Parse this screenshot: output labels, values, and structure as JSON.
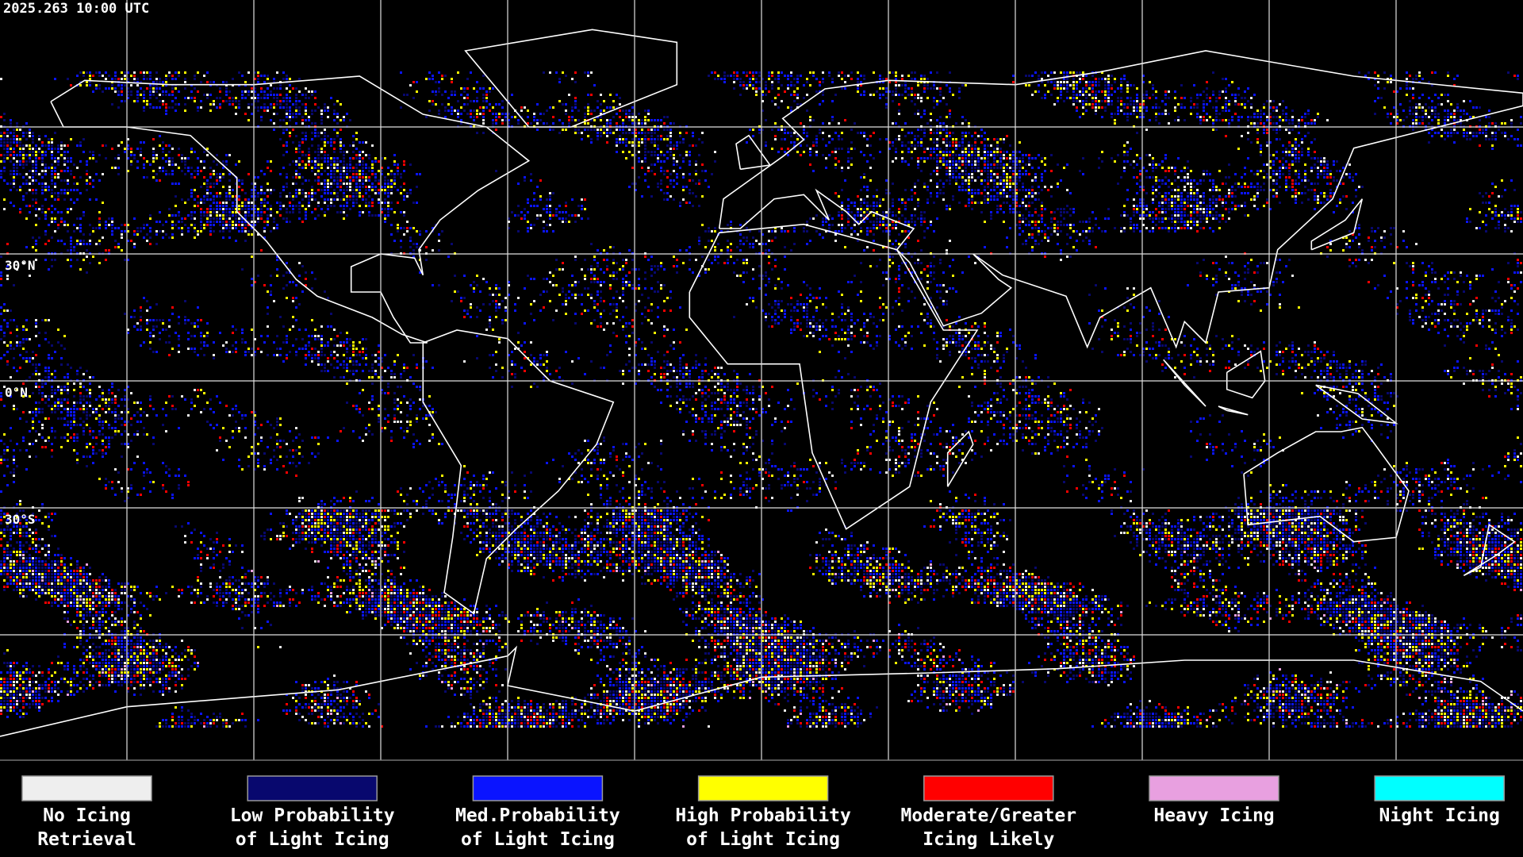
{
  "header": {
    "timestamp": "2025.263 10:00 UTC"
  },
  "map": {
    "latitude_labels": [
      "30°N",
      "0°N",
      "30°S"
    ]
  },
  "legend": [
    {
      "lines": [
        "No Icing",
        "Retrieval"
      ],
      "color": "#eeeeee"
    },
    {
      "lines": [
        "Low Probability",
        "of Light Icing"
      ],
      "color": "#08086e"
    },
    {
      "lines": [
        "Med.Probability",
        "of Light Icing"
      ],
      "color": "#0a14ff"
    },
    {
      "lines": [
        "High Probability",
        "of Light Icing"
      ],
      "color": "#ffff00"
    },
    {
      "lines": [
        "Moderate/Greater",
        "Icing Likely"
      ],
      "color": "#ff0000"
    },
    {
      "lines": [
        "Heavy Icing"
      ],
      "color": "#e8a0e0"
    },
    {
      "lines": [
        "Night Icing"
      ],
      "color": "#00ffff"
    }
  ]
}
